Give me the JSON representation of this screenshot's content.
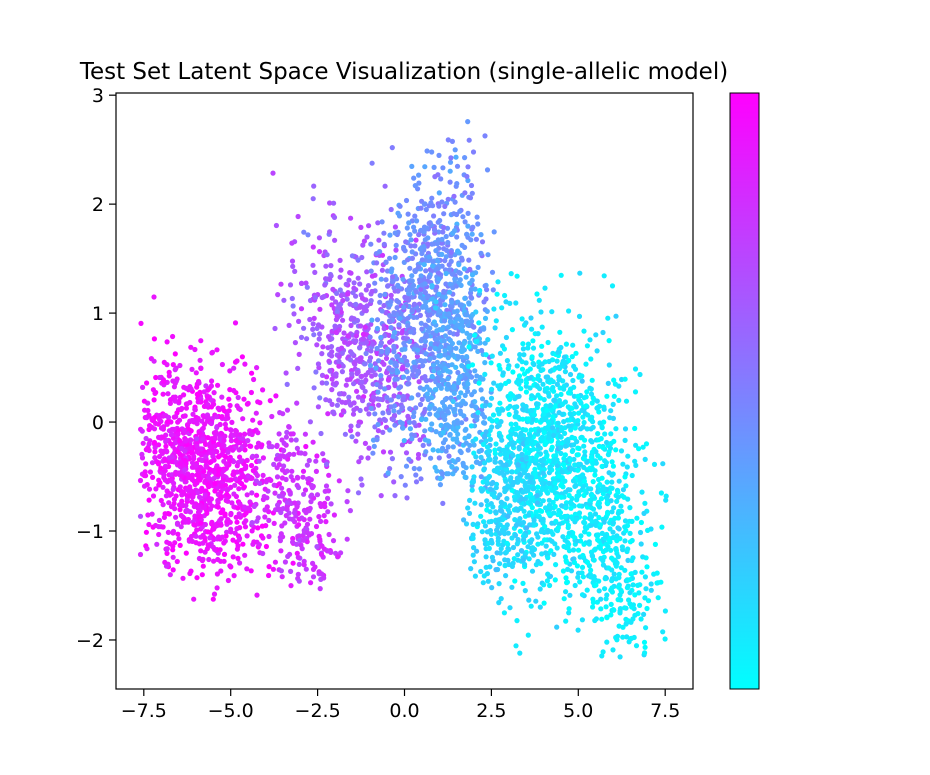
{
  "chart_data": {
    "type": "scatter",
    "title": "Test Set Latent Space Visualization (single-allelic model)",
    "xlabel": "",
    "ylabel": "",
    "xlim": [
      -8.3,
      8.3
    ],
    "ylim": [
      -2.45,
      3.02
    ],
    "x_ticks": [
      -7.5,
      -5.0,
      -2.5,
      0.0,
      2.5,
      5.0,
      7.5
    ],
    "x_tick_labels": [
      "−7.5",
      "−5.0",
      "−2.5",
      "0.0",
      "2.5",
      "5.0",
      "7.5"
    ],
    "y_ticks": [
      -2,
      -1,
      0,
      1,
      2,
      3
    ],
    "y_tick_labels": [
      "−2",
      "−1",
      "0",
      "1",
      "2",
      "3"
    ],
    "grid": false,
    "legend": "none",
    "colormap": {
      "name": "cool",
      "low": "#00ffff",
      "high": "#ff00ff"
    },
    "colorbar": {
      "position": "right",
      "tick_labels": []
    },
    "marker_size": 2.6,
    "clusters": [
      {
        "name": "magenta",
        "count": 1100,
        "cx": -5.9,
        "cy": -0.4,
        "sx": 1.0,
        "sy": 0.45,
        "rot": -0.14,
        "xmin": -7.6,
        "xmax": -2.2,
        "ymin": -1.65,
        "ymax": 1.28,
        "c": 0.92,
        "cspread": 0.05
      },
      {
        "name": "magenta-tail",
        "count": 260,
        "cx": -3.1,
        "cy": -0.75,
        "sx": 0.75,
        "sy": 0.38,
        "rot": -0.3,
        "xmin": -4.4,
        "xmax": -1.4,
        "ymin": -1.55,
        "ymax": 0.2,
        "c": 0.8,
        "cspread": 0.05
      },
      {
        "name": "purple",
        "count": 550,
        "cx": -1.3,
        "cy": 0.65,
        "sx": 0.95,
        "sy": 0.5,
        "rot": -0.3,
        "xmin": -3.8,
        "xmax": 0.6,
        "ymin": -1.4,
        "ymax": 2.35,
        "c": 0.66,
        "cspread": 0.07
      },
      {
        "name": "blue",
        "count": 800,
        "cx": 0.6,
        "cy": 1.05,
        "sx": 0.9,
        "sy": 0.62,
        "rot": 0.45,
        "xmin": -1.0,
        "xmax": 2.7,
        "ymin": -0.75,
        "ymax": 2.78,
        "c": 0.44,
        "cspread": 0.06
      },
      {
        "name": "light-blue",
        "count": 350,
        "cx": 1.5,
        "cy": 0.35,
        "sx": 0.55,
        "sy": 0.6,
        "rot": 0.7,
        "xmin": 0.6,
        "xmax": 2.5,
        "ymin": -0.6,
        "ymax": 1.8,
        "c": 0.33,
        "cspread": 0.04
      },
      {
        "name": "cyan",
        "count": 1250,
        "cx": 4.4,
        "cy": -0.35,
        "sx": 1.05,
        "sy": 0.62,
        "rot": -0.25,
        "xmin": 1.8,
        "xmax": 7.6,
        "ymin": -2.22,
        "ymax": 1.45,
        "c": 0.08,
        "cspread": 0.06
      },
      {
        "name": "cyan-left",
        "count": 300,
        "cx": 2.9,
        "cy": -0.7,
        "sx": 0.55,
        "sy": 0.42,
        "rot": 0.0,
        "xmin": 1.7,
        "xmax": 4.2,
        "ymin": -1.75,
        "ymax": 0.3,
        "c": 0.16,
        "cspread": 0.04
      },
      {
        "name": "cyan-tail",
        "count": 180,
        "cx": 6.3,
        "cy": -1.45,
        "sx": 0.6,
        "sy": 0.4,
        "rot": -0.55,
        "xmin": 5.0,
        "xmax": 7.6,
        "ymin": -2.22,
        "ymax": -0.4,
        "c": 0.06,
        "cspread": 0.04
      }
    ]
  }
}
